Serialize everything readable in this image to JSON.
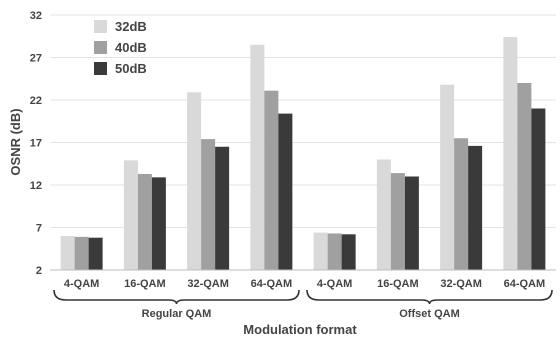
{
  "chart_data": {
    "type": "bar",
    "title": "",
    "xlabel": "Modulation format",
    "ylabel": "OSNR (dB)",
    "ylim": [
      2,
      32
    ],
    "yticks": [
      2,
      7,
      12,
      17,
      22,
      27,
      32
    ],
    "grid": true,
    "legend_position": "top-left",
    "categories": [
      "4-QAM",
      "16-QAM",
      "32-QAM",
      "64-QAM",
      "4-QAM",
      "16-QAM",
      "32-QAM",
      "64-QAM"
    ],
    "groups": [
      {
        "label": "Regular QAM",
        "start": 0,
        "end": 3
      },
      {
        "label": "Offset QAM",
        "start": 4,
        "end": 7
      }
    ],
    "series": [
      {
        "name": "32dB",
        "color": "#d9d9d9",
        "values": [
          6.0,
          14.9,
          22.9,
          28.5,
          6.4,
          15.0,
          23.8,
          29.4
        ]
      },
      {
        "name": "40dB",
        "color": "#a0a0a0",
        "values": [
          5.9,
          13.3,
          17.4,
          23.1,
          6.3,
          13.4,
          17.5,
          24.0
        ]
      },
      {
        "name": "50dB",
        "color": "#3a3a3a",
        "values": [
          5.8,
          12.9,
          16.5,
          20.4,
          6.2,
          13.0,
          16.6,
          21.0
        ]
      }
    ]
  }
}
